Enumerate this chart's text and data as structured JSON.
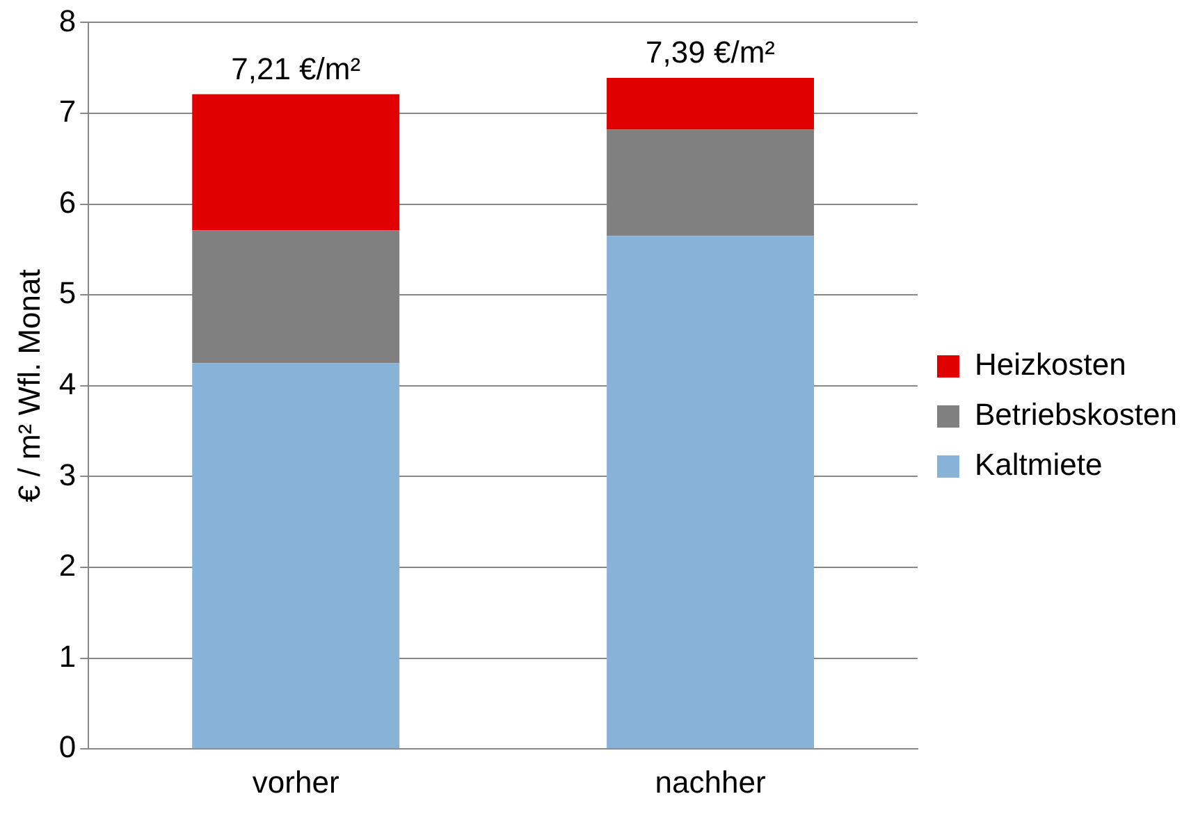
{
  "chart_data": {
    "type": "bar",
    "stacked": true,
    "ylabel": "€ / m² Wfl. Monat",
    "categories": [
      "vorher",
      "nachher"
    ],
    "series": [
      {
        "name": "Kaltmiete",
        "color": "#87b3d9",
        "values": [
          4.25,
          5.65
        ]
      },
      {
        "name": "Betriebskosten",
        "color": "#808080",
        "values": [
          1.46,
          1.17
        ]
      },
      {
        "name": "Heizkosten",
        "color": "#e00000",
        "values": [
          1.5,
          0.57
        ]
      }
    ],
    "totals": [
      "7,21 €/m²",
      "7,39 €/m²"
    ],
    "ylim": [
      0,
      8
    ],
    "yticks": [
      0,
      1,
      2,
      3,
      4,
      5,
      6,
      7,
      8
    ],
    "grid": "y",
    "legend": "right"
  }
}
